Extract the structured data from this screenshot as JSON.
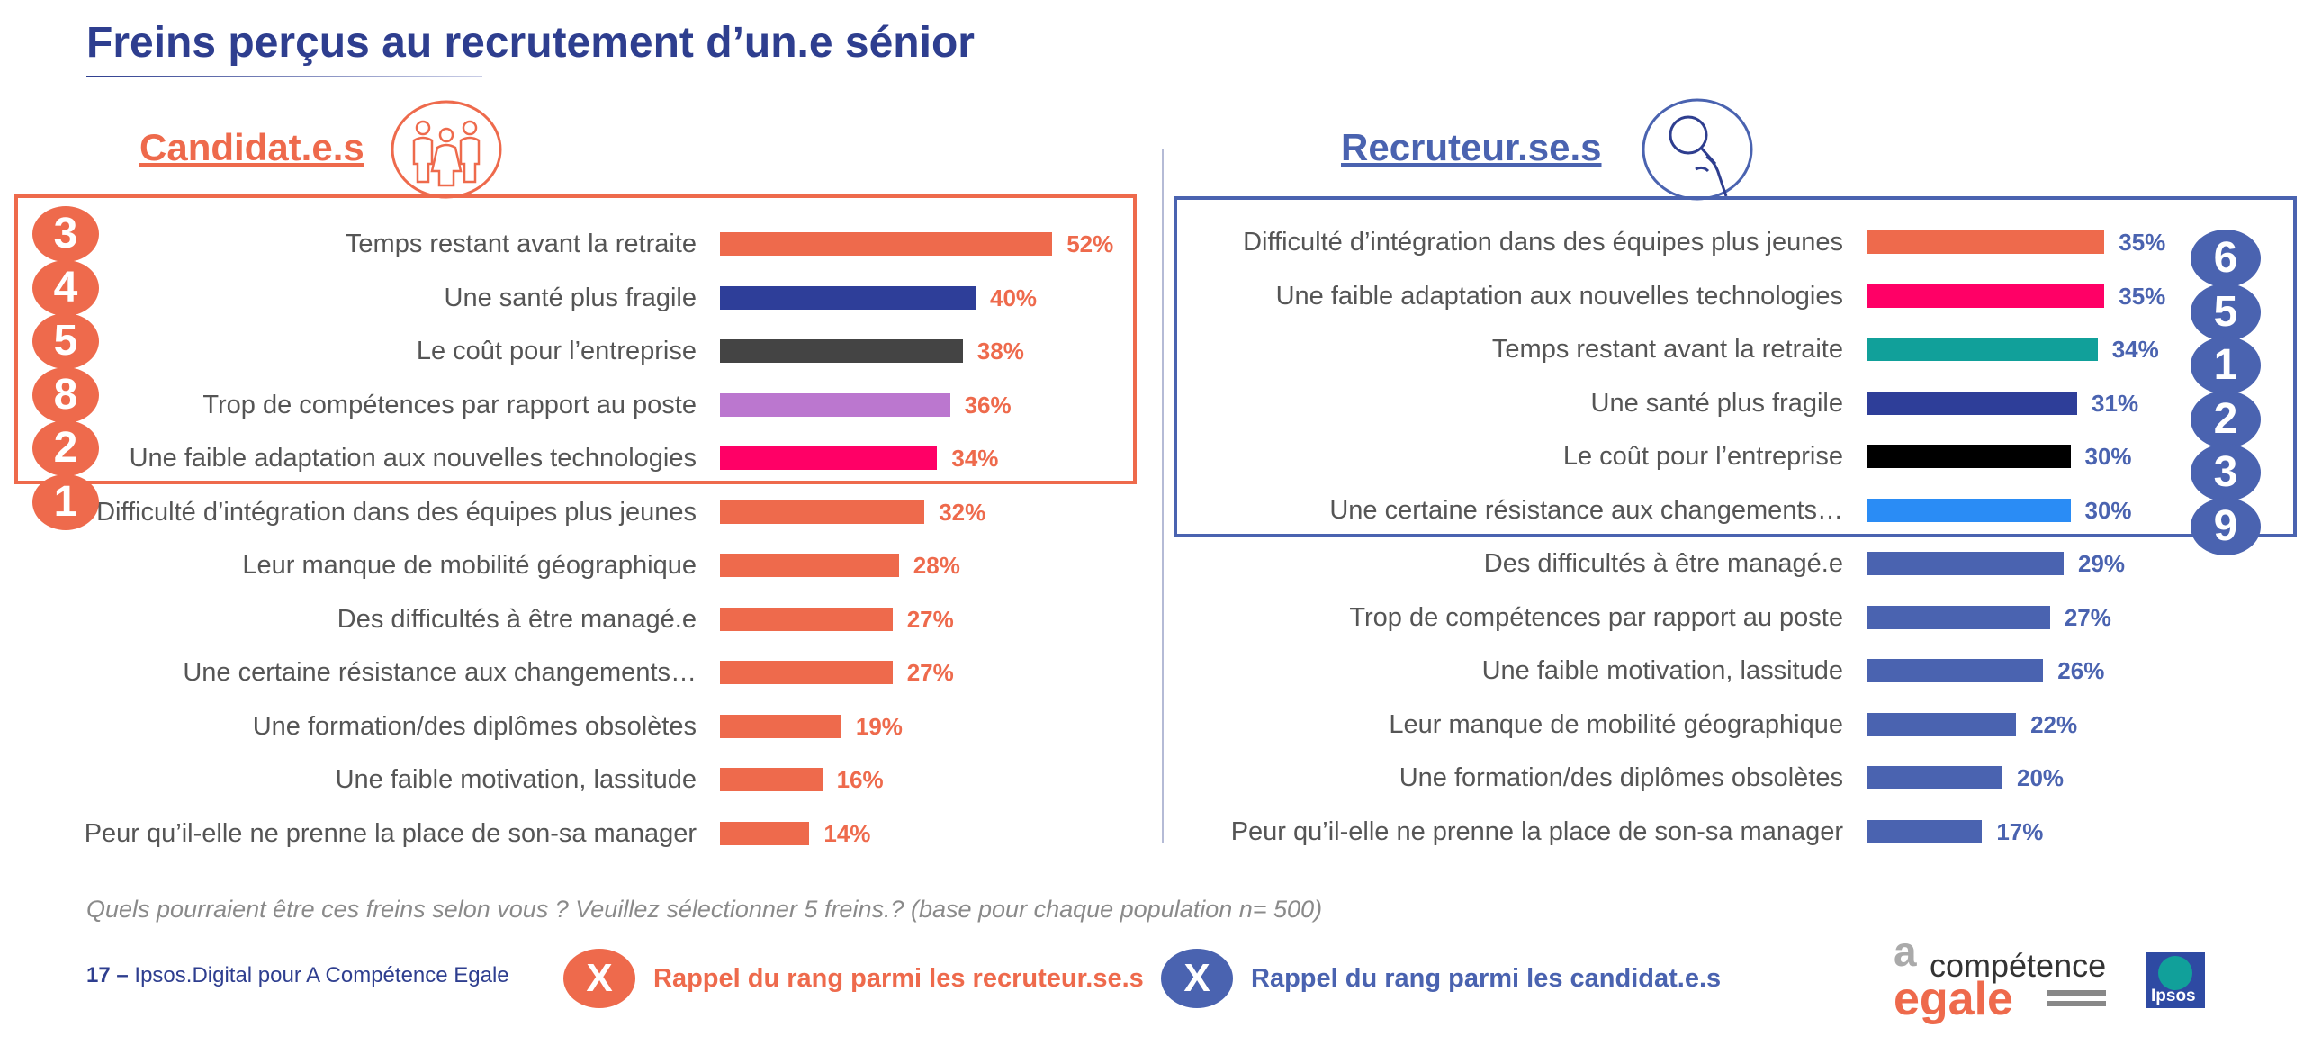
{
  "title": "Freins perçus au recrutement d’un.e sénior",
  "colors": {
    "orange": "#ee6a4c",
    "blue": "#4a63b0",
    "navy": "#2e3e8f"
  },
  "candidats": {
    "heading": "Candidat.e.s",
    "icon": "group-of-people-icon",
    "items": [
      {
        "label": "Temps restant avant la retraite",
        "value": 52,
        "value_label": "52%",
        "color": "#ee6a4c",
        "rank": "3"
      },
      {
        "label": "Une santé plus fragile",
        "value": 40,
        "value_label": "40%",
        "color": "#2e3e99",
        "rank": "4"
      },
      {
        "label": "Le coût pour l’entreprise",
        "value": 38,
        "value_label": "38%",
        "color": "#444444",
        "rank": "5"
      },
      {
        "label": "Trop de compétences par rapport au poste",
        "value": 36,
        "value_label": "36%",
        "color": "#bb77cf",
        "rank": "8"
      },
      {
        "label": "Une faible adaptation aux nouvelles technologies",
        "value": 34,
        "value_label": "34%",
        "color": "#ff0066",
        "rank": "2"
      },
      {
        "label": "Difficulté d’intégration dans des équipes plus jeunes",
        "value": 32,
        "value_label": "32%",
        "color": "#ee6a4c",
        "rank": "1"
      },
      {
        "label": "Leur manque de mobilité géographique",
        "value": 28,
        "value_label": "28%",
        "color": "#ee6a4c"
      },
      {
        "label": "Des difficultés à être managé.e",
        "value": 27,
        "value_label": "27%",
        "color": "#ee6a4c"
      },
      {
        "label": "Une certaine résistance aux changements…",
        "value": 27,
        "value_label": "27%",
        "color": "#ee6a4c"
      },
      {
        "label": "Une formation/des diplômes obsolètes",
        "value": 19,
        "value_label": "19%",
        "color": "#ee6a4c"
      },
      {
        "label": "Une faible motivation, lassitude",
        "value": 16,
        "value_label": "16%",
        "color": "#ee6a4c"
      },
      {
        "label": "Peur qu’il-elle ne prenne la place de son-sa manager",
        "value": 14,
        "value_label": "14%",
        "color": "#ee6a4c"
      }
    ]
  },
  "recruteurs": {
    "heading": "Recruteur.se.s",
    "icon": "magnifying-glass-hand-icon",
    "items": [
      {
        "label": "Difficulté d’intégration dans des équipes plus jeunes",
        "value": 35,
        "value_label": "35%",
        "color": "#ee6a4c",
        "rank": "6"
      },
      {
        "label": "Une faible adaptation aux nouvelles technologies",
        "value": 35,
        "value_label": "35%",
        "color": "#ff0066",
        "rank": "5"
      },
      {
        "label": "Temps restant avant la retraite",
        "value": 34,
        "value_label": "34%",
        "color": "#11a09a",
        "rank": "1"
      },
      {
        "label": "Une santé plus fragile",
        "value": 31,
        "value_label": "31%",
        "color": "#2e3e99",
        "rank": "2"
      },
      {
        "label": "Le coût pour l’entreprise",
        "value": 30,
        "value_label": "30%",
        "color": "#000000",
        "rank": "3"
      },
      {
        "label": "Une certaine résistance aux changements…",
        "value": 30,
        "value_label": "30%",
        "color": "#2a8cf5",
        "rank": "9"
      },
      {
        "label": "Des difficultés à être managé.e",
        "value": 29,
        "value_label": "29%",
        "color": "#4a63b0"
      },
      {
        "label": "Trop de compétences par rapport au poste",
        "value": 27,
        "value_label": "27%",
        "color": "#4a63b0"
      },
      {
        "label": "Une faible motivation, lassitude",
        "value": 26,
        "value_label": "26%",
        "color": "#4a63b0"
      },
      {
        "label": "Leur manque de mobilité géographique",
        "value": 22,
        "value_label": "22%",
        "color": "#4a63b0"
      },
      {
        "label": "Une formation/des diplômes obsolètes",
        "value": 20,
        "value_label": "20%",
        "color": "#4a63b0"
      },
      {
        "label": "Peur qu’il-elle ne prenne la place de son-sa manager",
        "value": 17,
        "value_label": "17%",
        "color": "#4a63b0"
      }
    ]
  },
  "chart_data": [
    {
      "type": "bar",
      "title": "Candidat.e.s",
      "categories": [
        "Temps restant avant la retraite",
        "Une santé plus fragile",
        "Le coût pour l’entreprise",
        "Trop de compétences par rapport au poste",
        "Une faible adaptation aux nouvelles technologies",
        "Difficulté d’intégration dans des équipes plus jeunes",
        "Leur manque de mobilité géographique",
        "Des difficultés à être managé.e",
        "Une certaine résistance aux changements…",
        "Une formation/des diplômes obsolètes",
        "Une faible motivation, lassitude",
        "Peur qu’il-elle ne prenne la place de son-sa manager"
      ],
      "values": [
        52,
        40,
        38,
        36,
        34,
        32,
        28,
        27,
        27,
        19,
        16,
        14
      ],
      "orientation": "horizontal",
      "grid": false
    },
    {
      "type": "bar",
      "title": "Recruteur.se.s",
      "categories": [
        "Difficulté d’intégration dans des équipes plus jeunes",
        "Une faible adaptation aux nouvelles technologies",
        "Temps restant avant la retraite",
        "Une santé plus fragile",
        "Le coût pour l’entreprise",
        "Une certaine résistance aux changements…",
        "Des difficultés à être managé.e",
        "Trop de compétences par rapport au poste",
        "Une faible motivation, lassitude",
        "Leur manque de mobilité géographique",
        "Une formation/des diplômes obsolètes",
        "Peur qu’il-elle ne prenne la place de son-sa manager"
      ],
      "values": [
        35,
        35,
        34,
        31,
        30,
        30,
        29,
        27,
        26,
        22,
        20,
        17
      ],
      "orientation": "horizontal",
      "grid": false
    }
  ],
  "question": "Quels pourraient être ces freins selon vous ? Veuillez sélectionner 5 freins.? (base pour chaque population n= 500)",
  "footer": {
    "page_number": "17",
    "dash": "–",
    "source": "Ipsos.Digital pour A Compétence Egale",
    "legend": [
      {
        "badge": "X",
        "text": "Rappel du rang parmi les recruteur.se.s",
        "color": "#ee6a4c"
      },
      {
        "badge": "X",
        "text": "Rappel du rang parmi les candidat.e.s",
        "color": "#4a63b0"
      }
    ],
    "logo": {
      "a": "a",
      "competence": "compétence",
      "egale": "egale"
    },
    "ipsos": "Ipsos"
  }
}
